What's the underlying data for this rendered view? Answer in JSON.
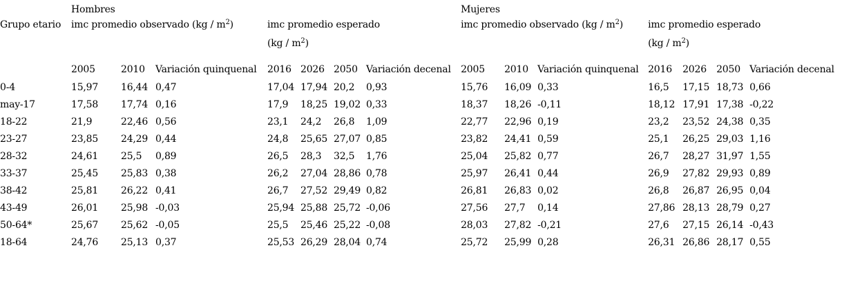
{
  "labels": {
    "hombres": "Hombres",
    "mujeres": "Mujeres",
    "grupo_etario": "Grupo etario",
    "obs_pre": "imc promedio observado (kg / m",
    "obs_sup": "2",
    "obs_post": ")",
    "esperado_title": "imc promedio esperado",
    "unit_pre": "(kg / m",
    "unit_sup": "2",
    "unit_post": ")"
  },
  "col_headers": {
    "y2005": "2005",
    "y2010": "2010",
    "var_quinquenal": "Variación quinquenal",
    "y2016": "2016",
    "y2026": "2026",
    "y2050": "2050",
    "var_decenal": "Variación decenal"
  },
  "rows": [
    [
      "0-4",
      "15,97",
      "16,44",
      "0,47",
      "17,04",
      "17,94",
      "20,2",
      "0,93",
      "15,76",
      "16,09",
      "0,33",
      "16,5",
      "17,15",
      "18,73",
      "0,66"
    ],
    [
      "may-17",
      "17,58",
      "17,74",
      "0,16",
      "17,9",
      "18,25",
      "19,02",
      "0,33",
      "18,37",
      "18,26",
      "-0,11",
      "18,12",
      "17,91",
      "17,38",
      "-0,22"
    ],
    [
      "18-22",
      "21,9",
      "22,46",
      "0,56",
      "23,1",
      "24,2",
      "26,8",
      "1,09",
      "22,77",
      "22,96",
      "0,19",
      "23,2",
      "23,52",
      "24,38",
      "0,35"
    ],
    [
      "23-27",
      "23,85",
      "24,29",
      "0,44",
      "24,8",
      "25,65",
      "27,07",
      "0,85",
      "23,82",
      "24,41",
      "0,59",
      "25,1",
      "26,25",
      "29,03",
      "1,16"
    ],
    [
      "28-32",
      "24,61",
      "25,5",
      "0,89",
      "26,5",
      "28,3",
      "32,5",
      "1,76",
      "25,04",
      "25,82",
      "0,77",
      "26,7",
      "28,27",
      "31,97",
      "1,55"
    ],
    [
      "33-37",
      "25,45",
      "25,83",
      "0,38",
      "26,2",
      "27,04",
      "28,86",
      "0,78",
      "25,97",
      "26,41",
      "0,44",
      "26,9",
      "27,82",
      "29,93",
      "0,89"
    ],
    [
      "38-42",
      "25,81",
      "26,22",
      "0,41",
      "26,7",
      "27,52",
      "29,49",
      "0,82",
      "26,81",
      "26,83",
      "0,02",
      "26,8",
      "26,87",
      "26,95",
      "0,04"
    ],
    [
      "43-49",
      "26,01",
      "25,98",
      "-0,03",
      "25,94",
      "25,88",
      "25,72",
      "-0,06",
      "27,56",
      "27,7",
      "0,14",
      "27,86",
      "28,13",
      "28,79",
      "0,27"
    ],
    [
      "50-64*",
      "25,67",
      "25,62",
      "-0,05",
      "25,5",
      "25,46",
      "25,22",
      "-0,08",
      "28,03",
      "27,82",
      "-0,21",
      "27,6",
      "27,15",
      "26,14",
      "-0,43"
    ],
    [
      "18-64",
      "24,76",
      "25,13",
      "0,37",
      "25,53",
      "26,29",
      "28,04",
      "0,74",
      "25,72",
      "25,99",
      "0,28",
      "26,31",
      "26,86",
      "28,17",
      "0,55"
    ]
  ]
}
